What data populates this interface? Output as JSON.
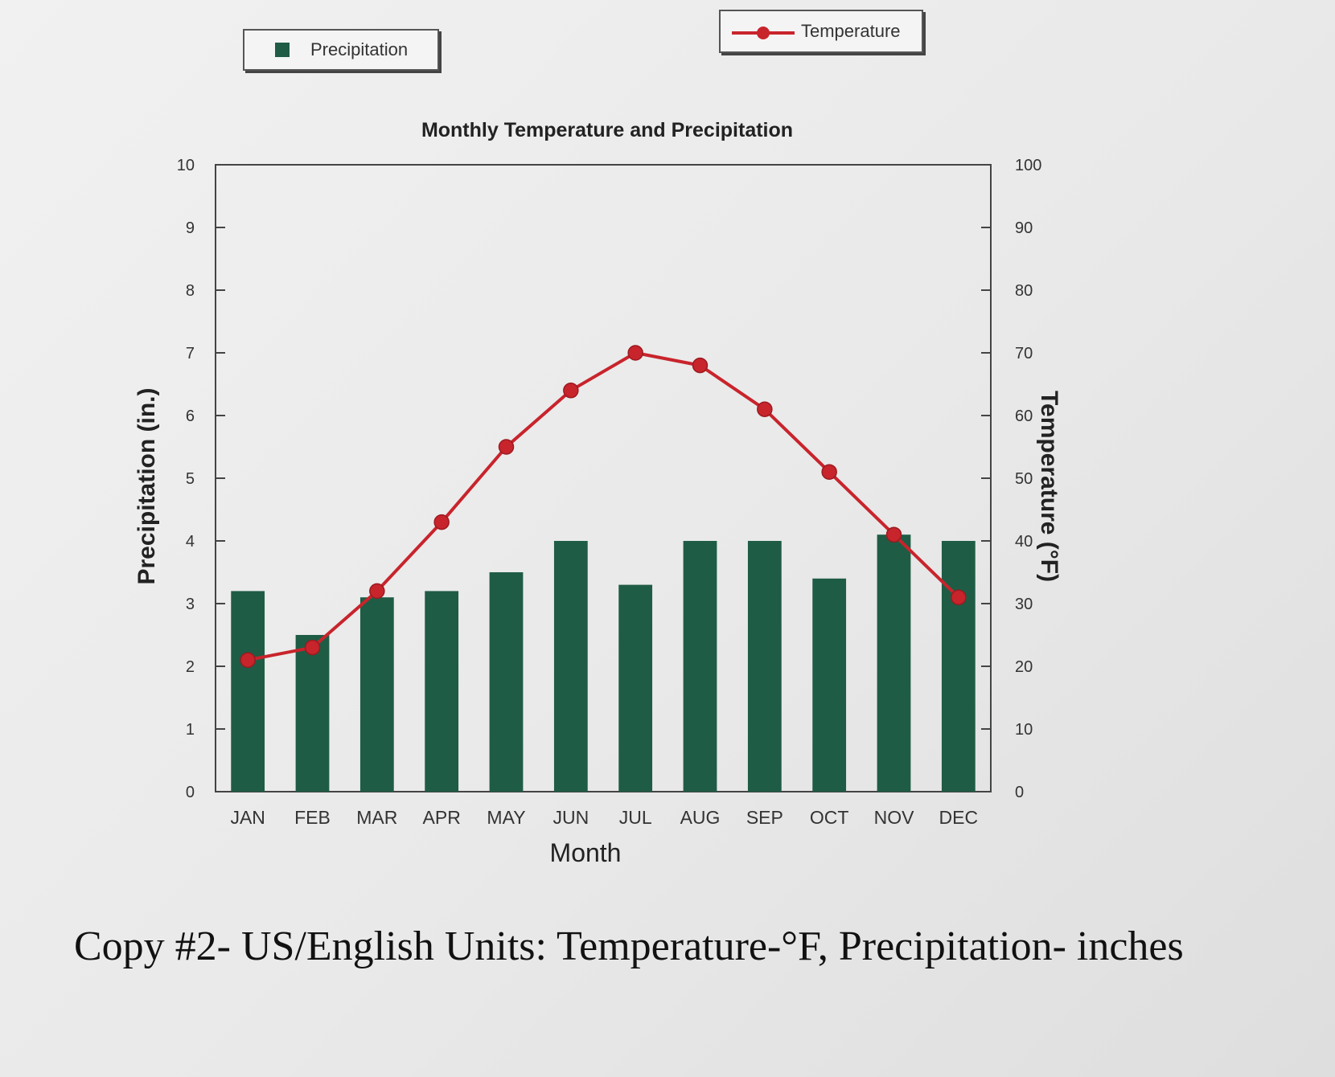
{
  "chart_data": {
    "type": "bar",
    "title": "Monthly Temperature and Precipitation",
    "xlabel": "Month",
    "categories": [
      "JAN",
      "FEB",
      "MAR",
      "APR",
      "MAY",
      "JUN",
      "JUL",
      "AUG",
      "SEP",
      "OCT",
      "NOV",
      "DEC"
    ],
    "series": [
      {
        "name": "Precipitation",
        "type": "bar",
        "axis": "left",
        "values": [
          3.2,
          2.5,
          3.1,
          3.2,
          3.5,
          4.0,
          3.3,
          4.0,
          4.0,
          3.4,
          4.1,
          4.0
        ]
      },
      {
        "name": "Temperature",
        "type": "line",
        "axis": "right",
        "values": [
          21,
          23,
          32,
          43,
          55,
          64,
          70,
          68,
          61,
          51,
          41,
          31
        ]
      }
    ],
    "y_left": {
      "label": "Precipitation (in.)",
      "lim": [
        0,
        10
      ],
      "ticks": [
        "0",
        "1",
        "2",
        "3",
        "4",
        "5",
        "6",
        "7",
        "8",
        "9",
        "10"
      ]
    },
    "y_right": {
      "label": "Temperature (°F)",
      "lim": [
        0,
        100
      ],
      "ticks": [
        "0",
        "10",
        "20",
        "30",
        "40",
        "50",
        "60",
        "70",
        "80",
        "90",
        "100"
      ]
    },
    "legend": [
      {
        "label": "Precipitation",
        "placement": "top-left"
      },
      {
        "label": "Temperature",
        "placement": "top-right"
      }
    ],
    "grid": false,
    "colors": {
      "bar": "#1f5c45",
      "line": "#c8242c",
      "axis": "#444444"
    }
  },
  "caption": "Copy #2- US/English Units: Temperature-°F, Precipitation- inches"
}
